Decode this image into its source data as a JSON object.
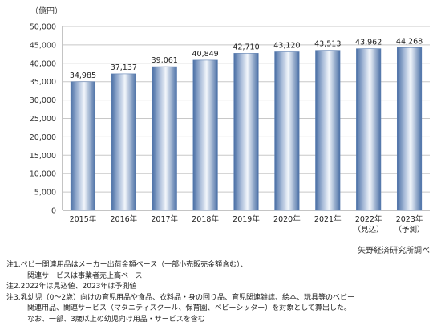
{
  "chart_data": {
    "type": "bar",
    "unit_label": "（億円）",
    "categories": [
      "2015年",
      "2016年",
      "2017年",
      "2018年",
      "2019年",
      "2020年",
      "2021年",
      "2022年",
      "2023年"
    ],
    "category_sublabels": [
      "",
      "",
      "",
      "",
      "",
      "",
      "",
      "（見込）",
      "（予測）"
    ],
    "values": [
      34985,
      37137,
      39061,
      40849,
      42710,
      43120,
      43513,
      43962,
      44268
    ],
    "data_labels": [
      "34,985",
      "37,137",
      "39,061",
      "40,849",
      "42,710",
      "43,120",
      "43,513",
      "43,962",
      "44,268"
    ],
    "ylim": [
      0,
      50000
    ],
    "yticks": [
      "0",
      "5,000",
      "10,000",
      "15,000",
      "20,000",
      "25,000",
      "30,000",
      "35,000",
      "40,000",
      "45,000",
      "50,000"
    ],
    "grid": true,
    "colors": {
      "bar_edge": "#4a6fa5",
      "bar_center": "#f2f6fb",
      "bar_mid": "#a9bcd9",
      "grid": "#c8c8c8"
    }
  },
  "source": "矢野経済研究所調べ",
  "notes": [
    {
      "head": "注1.ベビー関連用品はメーカー出荷金額ベース（一部小売販売金額含む）、",
      "cont": [
        "関連サービスは事業者売上高ベース"
      ]
    },
    {
      "head": "注2.2022年は見込値、2023年は予測値",
      "cont": []
    },
    {
      "head": "注3.乳幼児（0〜2歳）向けの育児用品や食品、衣料品・身の回り品、育児関連雑誌、絵本、玩具等のベビー",
      "cont": [
        "関連用品、関連サービス（マタニティスクール、保育園、ベビーシッター）を対象として算出した。",
        "なお、一部、3歳以上の幼児向け用品・サービスを含む"
      ]
    }
  ]
}
